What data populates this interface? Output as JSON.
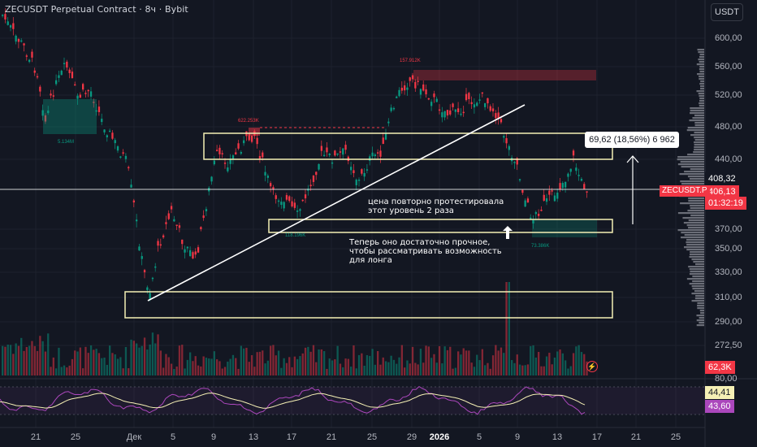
{
  "header": {
    "title": "ZECUSDT Perpetual Contract · 8ч · Bybit"
  },
  "currency_button": "USDT",
  "price_axis": {
    "ticks": [
      "600,00",
      "560,00",
      "520,00",
      "480,00",
      "440,00",
      "408,32",
      "370,00",
      "350,00",
      "330,00",
      "310,00",
      "290,00",
      "272,50"
    ],
    "current_price": "406,13",
    "countdown": "01:32:19",
    "symbol_label": "ZECUSDT.P",
    "volume_label": "62,3K",
    "rsi_top": "80,00",
    "rsi_value1": "44,41",
    "rsi_value2": "43,60"
  },
  "time_axis": {
    "ticks": [
      "21",
      "25",
      "Дек",
      "5",
      "9",
      "13",
      "17",
      "21",
      "25",
      "29",
      "2026",
      "5",
      "9",
      "13",
      "17",
      "21",
      "25"
    ]
  },
  "annotations": {
    "retest_line1": "цена повторно протестировала",
    "retest_line2": "этот уровень 2 раза",
    "strong_line1": "Теперь оно достаточно прочное,",
    "strong_line2": "чтобы рассматривать возможность",
    "strong_line3": "для лонга"
  },
  "measure": {
    "text": "69,62 (18,56%) 6 962"
  },
  "volume_labels": {
    "left": "5.134M",
    "mid": "622.253K",
    "top": "157.912K",
    "low_left": "118.196K",
    "low_right": "73.386K"
  },
  "colors": {
    "bg": "#131722",
    "up": "#089981",
    "down": "#f23645",
    "zone": "#f5f0b5",
    "rsi": "#ab47bc"
  }
}
